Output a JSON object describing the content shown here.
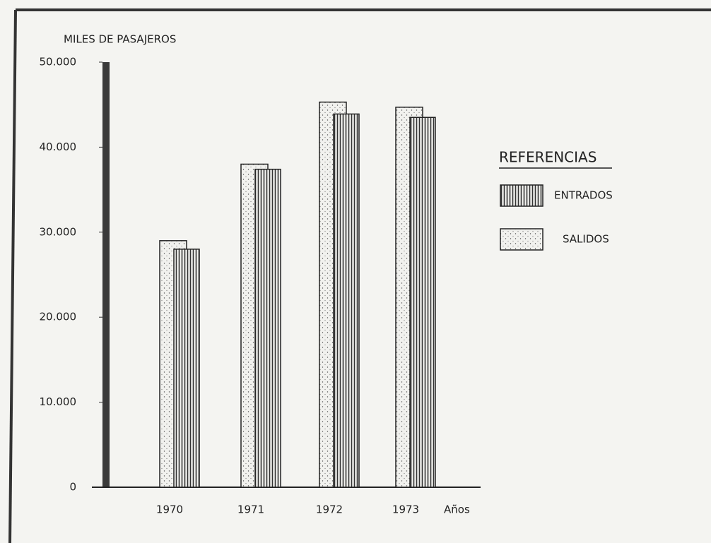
{
  "chart_data": {
    "type": "bar",
    "y_axis_title": "MILES DE PASAJEROS",
    "x_axis_label": "Años",
    "legend_title": "REFERENCIAS",
    "categories": [
      "1970",
      "1971",
      "1972",
      "1973"
    ],
    "series": [
      {
        "name": "ENTRADOS",
        "pattern": "vertical-lines",
        "values": [
          28000,
          37400,
          43900,
          43500
        ]
      },
      {
        "name": "SALIDOS",
        "pattern": "dots",
        "values": [
          29000,
          38000,
          45300,
          44700
        ]
      }
    ],
    "ylim": [
      0,
      50000
    ],
    "yticks": [
      0,
      {
        "value": 10000,
        "label": "10.000"
      },
      {
        "value": 20000,
        "label": "20.000"
      },
      {
        "value": 30000,
        "label": "30.000"
      },
      {
        "value": 40000,
        "label": "40.000"
      },
      {
        "value": 50000,
        "label": "50.000"
      }
    ]
  }
}
